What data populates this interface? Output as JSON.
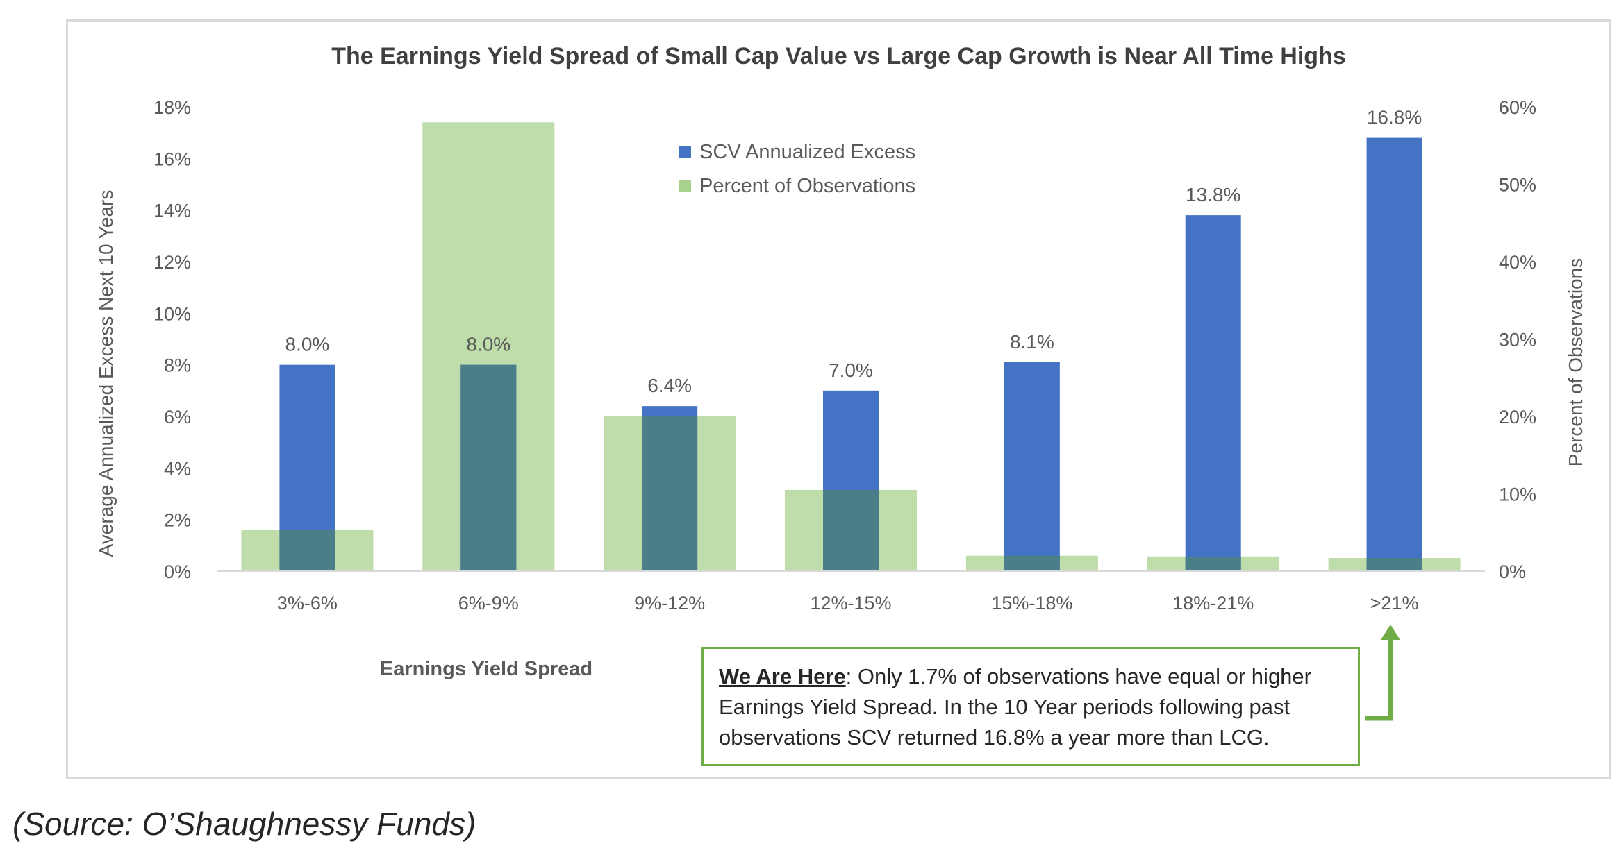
{
  "chart_data": {
    "type": "bar",
    "title": "The Earnings Yield Spread of Small Cap Value vs Large Cap Growth is Near All Time Highs",
    "xlabel": "Earnings Yield Spread",
    "ylabel": "Average Annualized Excess Next 10 Years",
    "y2label": "Percent of Observations",
    "categories": [
      "3%-6%",
      "6%-9%",
      "9%-12%",
      "12%-15%",
      "15%-18%",
      "18%-21%",
      ">21%"
    ],
    "series": [
      {
        "name": "SCV Annualized Excess",
        "axis": "left",
        "color": "#4472c4",
        "values": [
          8.0,
          8.0,
          6.4,
          7.0,
          8.1,
          13.8,
          16.8
        ],
        "labels": [
          "8.0%",
          "8.0%",
          "6.4%",
          "7.0%",
          "8.1%",
          "13.8%",
          "16.8%"
        ]
      },
      {
        "name": "Percent of Observations",
        "axis": "right",
        "color": "#a9d18e",
        "values": [
          5.3,
          58.0,
          20.0,
          10.5,
          2.0,
          1.9,
          1.7
        ]
      }
    ],
    "ylim": [
      0,
      18
    ],
    "y2lim": [
      0,
      60
    ],
    "yticks": [
      "0%",
      "2%",
      "4%",
      "6%",
      "8%",
      "10%",
      "12%",
      "14%",
      "16%",
      "18%"
    ],
    "y2ticks": [
      "0%",
      "10%",
      "20%",
      "30%",
      "40%",
      "50%",
      "60%"
    ],
    "legend_position": "top-center",
    "grid": false
  },
  "callout": {
    "heading": "We Are Here",
    "text": ": Only 1.7% of observations have equal or higher Earnings Yield Spread.  In the 10 Year periods following past observations SCV returned 16.8% a year more than LCG.",
    "border_color": "#70ad47"
  },
  "source": "(Source: O’Shaughnessy Funds)"
}
